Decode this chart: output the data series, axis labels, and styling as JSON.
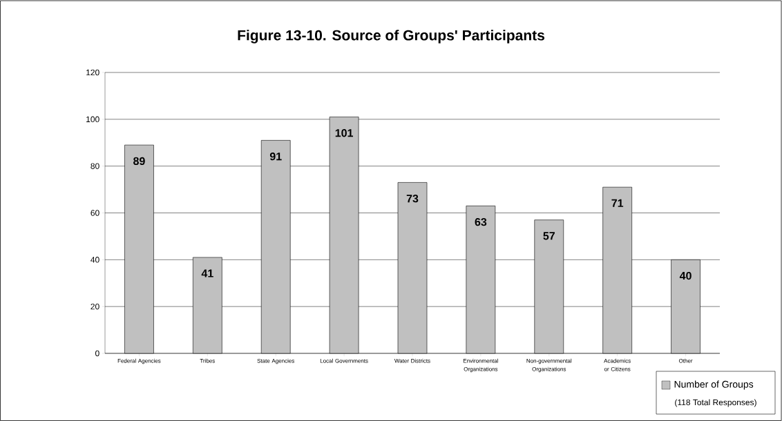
{
  "chart_data": {
    "type": "bar",
    "title": "Figure 13-10.  Source of Groups' Participants",
    "categories": [
      "Federal Agencies",
      "Tribes",
      "State Agencies",
      "Local Governments",
      "Water Districts",
      "Environmental Organizations",
      "Non-governmental Organizations",
      "Academics or Citizens",
      "Other"
    ],
    "series": [
      {
        "name": "Number of Groups",
        "color": "#c0c0c0",
        "values": [
          89,
          41,
          91,
          101,
          73,
          63,
          57,
          71,
          40
        ]
      }
    ],
    "ylim": [
      0,
      120
    ],
    "yticks": [
      0,
      20,
      40,
      60,
      80,
      100,
      120
    ],
    "grid": "y",
    "data_labels": true,
    "legend": "bottom right",
    "annotations": [
      "(118 Total Responses)"
    ]
  }
}
